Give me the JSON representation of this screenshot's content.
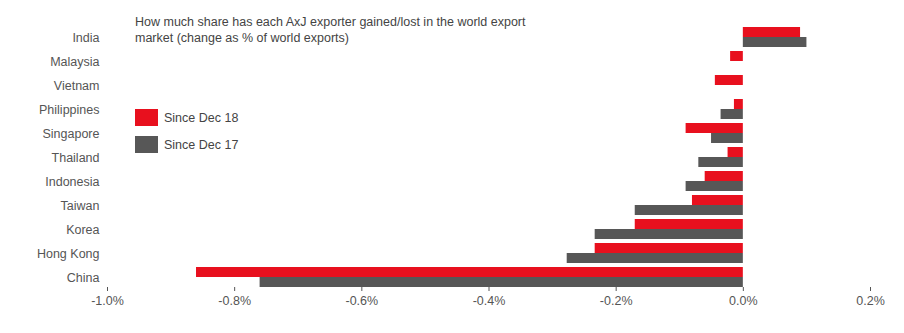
{
  "chart_data": {
    "type": "bar",
    "orientation": "horizontal",
    "title": "How much share has each AxJ exporter gained/lost in the world export market (change as % of world exports)",
    "categories": [
      "India",
      "Malaysia",
      "Vietnam",
      "Philippines",
      "Singapore",
      "Thailand",
      "Indonesia",
      "Taiwan",
      "Korea",
      "Hong Kong",
      "China"
    ],
    "series": [
      {
        "name": "Since Dec 18",
        "color": "#e8101e",
        "values": [
          0.09,
          -0.02,
          -0.044,
          -0.014,
          -0.09,
          -0.024,
          -0.06,
          -0.08,
          -0.17,
          -0.233,
          -0.86
        ]
      },
      {
        "name": "Since Dec 17",
        "color": "#575757",
        "values": [
          0.1,
          null,
          null,
          -0.035,
          -0.05,
          -0.07,
          -0.09,
          -0.17,
          -0.233,
          -0.277,
          -0.76
        ]
      }
    ],
    "xlim": [
      -1.0,
      0.2
    ],
    "xticks": [
      {
        "value": -1.0,
        "label": "-1.0%"
      },
      {
        "value": -0.8,
        "label": "-0.8%"
      },
      {
        "value": -0.6,
        "label": "-0.6%"
      },
      {
        "value": -0.4,
        "label": "-0.4%"
      },
      {
        "value": -0.2,
        "label": "-0.2%"
      },
      {
        "value": 0,
        "label": "0.0%"
      },
      {
        "value": 0.2,
        "label": "0.2%"
      }
    ],
    "grid": false,
    "legend": "upper left",
    "data_labels": false
  }
}
